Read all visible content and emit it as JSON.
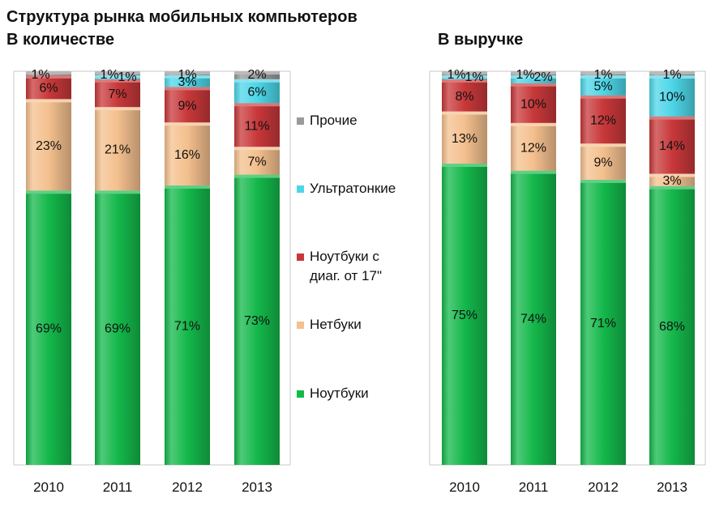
{
  "title": "Структура рынка мобильных компьютеров",
  "colors": {
    "notebooks": "#14b84b",
    "netbooks": "#f4c08e",
    "large17": "#c8383a",
    "ultrathin": "#4dd6e8",
    "other": "#9a9a9a"
  },
  "legend": [
    {
      "key": "other",
      "label": "Прочие"
    },
    {
      "key": "ultrathin",
      "label": "Ультратонкие"
    },
    {
      "key": "large17",
      "label": "Ноутбуки с диаг. от 17\""
    },
    {
      "key": "netbooks",
      "label": "Нетбуки"
    },
    {
      "key": "notebooks",
      "label": "Ноутбуки"
    }
  ],
  "chart_data": [
    {
      "type": "bar",
      "stacked": true,
      "title": "В количестве",
      "categories": [
        "2010",
        "2011",
        "2012",
        "2013"
      ],
      "ylim": [
        0,
        100
      ],
      "series": [
        {
          "key": "notebooks",
          "name": "Ноутбуки",
          "values": [
            69,
            69,
            71,
            73
          ]
        },
        {
          "key": "netbooks",
          "name": "Нетбуки",
          "values": [
            23,
            21,
            16,
            7
          ]
        },
        {
          "key": "large17",
          "name": "Ноутбуки с диаг. от 17\"",
          "values": [
            6,
            7,
            9,
            11
          ]
        },
        {
          "key": "ultrathin",
          "name": "Ультратонкие",
          "values": [
            0,
            1,
            3,
            6
          ]
        },
        {
          "key": "other",
          "name": "Прочие",
          "values": [
            1,
            1,
            1,
            2
          ]
        }
      ],
      "labels": [
        [
          "69%",
          "23%",
          "6%",
          "",
          "1%"
        ],
        [
          "69%",
          "21%",
          "7%",
          "1%",
          "1%"
        ],
        [
          "71%",
          "16%",
          "9%",
          "3%",
          "1%"
        ],
        [
          "73%",
          "7%",
          "11%",
          "6%",
          "2%"
        ]
      ]
    },
    {
      "type": "bar",
      "stacked": true,
      "title": "В выручке",
      "categories": [
        "2010",
        "2011",
        "2012",
        "2013"
      ],
      "ylim": [
        0,
        100
      ],
      "series": [
        {
          "key": "notebooks",
          "name": "Ноутбуки",
          "values": [
            75,
            74,
            71,
            68
          ]
        },
        {
          "key": "netbooks",
          "name": "Нетбуки",
          "values": [
            13,
            12,
            9,
            3
          ]
        },
        {
          "key": "large17",
          "name": "Ноутбуки с диаг. от 17\"",
          "values": [
            8,
            10,
            12,
            14
          ]
        },
        {
          "key": "ultrathin",
          "name": "Ультратонкие",
          "values": [
            1,
            2,
            5,
            10
          ]
        },
        {
          "key": "other",
          "name": "Прочие",
          "values": [
            1,
            1,
            1,
            1
          ]
        }
      ],
      "labels": [
        [
          "75%",
          "13%",
          "8%",
          "1%",
          "1%"
        ],
        [
          "74%",
          "12%",
          "10%",
          "2%",
          "1%"
        ],
        [
          "71%",
          "9%",
          "12%",
          "5%",
          "1%"
        ],
        [
          "68%",
          "3%",
          "14%",
          "10%",
          "1%"
        ]
      ]
    }
  ]
}
